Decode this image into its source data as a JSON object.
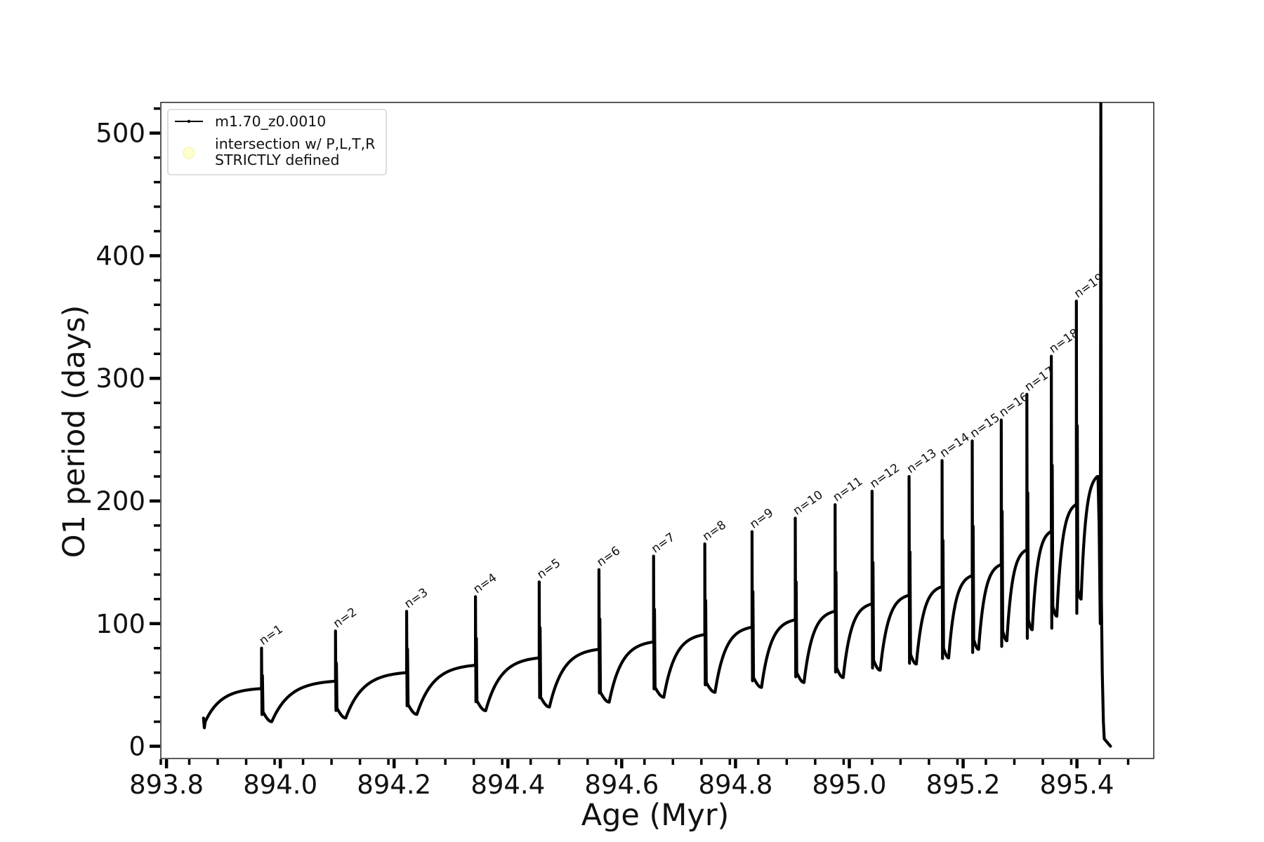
{
  "colors": {
    "series": "#000000",
    "intersection_marker": "#ffffcc",
    "legend_border": "#cccccc",
    "axes": "#000000"
  },
  "chart_data": {
    "type": "line",
    "xlabel": "Age (Myr)",
    "ylabel": "O1 period (days)",
    "xlim": [
      893.79,
      895.535
    ],
    "ylim": [
      -10,
      525
    ],
    "x_ticks": [
      "893.8",
      "894.0",
      "894.2",
      "894.4",
      "894.6",
      "894.8",
      "895.0",
      "895.2",
      "895.4"
    ],
    "x_tick_values": [
      893.8,
      894.0,
      894.2,
      894.4,
      894.6,
      894.8,
      895.0,
      895.2,
      895.4
    ],
    "y_ticks": [
      "0",
      "100",
      "200",
      "300",
      "400",
      "500"
    ],
    "y_tick_values": [
      0,
      100,
      200,
      300,
      400,
      500
    ],
    "legend": {
      "position": "upper left",
      "entries": [
        {
          "label": "m1.70_z0.0010",
          "marker": "line"
        },
        {
          "label": "intersection w/ P,L,T,R\nSTRICTLY defined",
          "marker": "circle"
        }
      ]
    },
    "series": [
      {
        "name": "m1.70_z0.0010",
        "start": {
          "x": 893.865,
          "y": 18
        },
        "end": {
          "x": 895.455,
          "y": 0
        },
        "pulses": [
          {
            "label": "n=1",
            "x": 893.967,
            "peak": 80,
            "pre": 47,
            "min": 20
          },
          {
            "label": "n=2",
            "x": 894.097,
            "peak": 94,
            "pre": 53,
            "min": 23
          },
          {
            "label": "n=3",
            "x": 894.222,
            "peak": 110,
            "pre": 60,
            "min": 26
          },
          {
            "label": "n=4",
            "x": 894.343,
            "peak": 122,
            "pre": 66,
            "min": 29
          },
          {
            "label": "n=5",
            "x": 894.455,
            "peak": 134,
            "pre": 72,
            "min": 32
          },
          {
            "label": "n=6",
            "x": 894.56,
            "peak": 144,
            "pre": 79,
            "min": 36
          },
          {
            "label": "n=7",
            "x": 894.656,
            "peak": 155,
            "pre": 85,
            "min": 40
          },
          {
            "label": "n=8",
            "x": 894.746,
            "peak": 165,
            "pre": 91,
            "min": 44
          },
          {
            "label": "n=9",
            "x": 894.829,
            "peak": 175,
            "pre": 97,
            "min": 48
          },
          {
            "label": "n=10",
            "x": 894.905,
            "peak": 186,
            "pre": 103,
            "min": 52
          },
          {
            "label": "n=11",
            "x": 894.975,
            "peak": 197,
            "pre": 110,
            "min": 56
          },
          {
            "label": "n=12",
            "x": 895.04,
            "peak": 208,
            "pre": 116,
            "min": 62
          },
          {
            "label": "n=13",
            "x": 895.105,
            "peak": 220,
            "pre": 123,
            "min": 67
          },
          {
            "label": "n=14",
            "x": 895.163,
            "peak": 233,
            "pre": 130,
            "min": 72
          },
          {
            "label": "n=15",
            "x": 895.216,
            "peak": 249,
            "pre": 139,
            "min": 79
          },
          {
            "label": "n=16",
            "x": 895.267,
            "peak": 266,
            "pre": 148,
            "min": 86
          },
          {
            "label": "n=17",
            "x": 895.312,
            "peak": 287,
            "pre": 160,
            "min": 95
          },
          {
            "label": "n=18",
            "x": 895.355,
            "peak": 318,
            "pre": 175,
            "min": 106
          },
          {
            "label": "n=19",
            "x": 895.399,
            "peak": 363,
            "pre": 197,
            "min": 120
          }
        ],
        "final_pulse": {
          "x": 895.437,
          "pre": 220,
          "max": 525
        }
      }
    ]
  }
}
